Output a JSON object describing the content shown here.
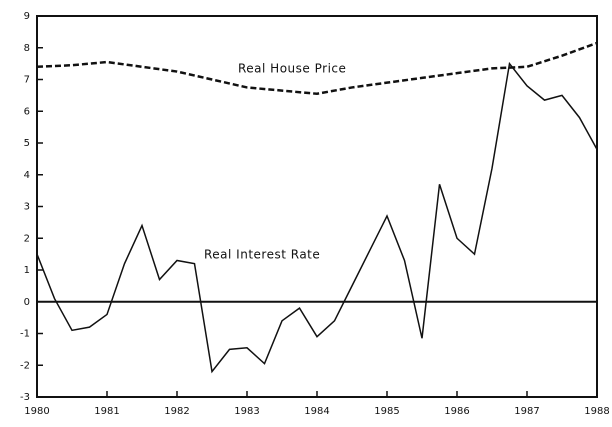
{
  "chart_data": {
    "type": "line",
    "annotations": [
      "Real House Price",
      "Real Interest Rate"
    ],
    "series": [
      {
        "name": "Real House Price",
        "color": "#111111",
        "dash": true,
        "x": [
          1980,
          1980.5,
          1981,
          1981.5,
          1982,
          1982.5,
          1983,
          1983.5,
          1984,
          1984.5,
          1985,
          1985.5,
          1986,
          1986.5,
          1987,
          1987.5,
          1988
        ],
        "values": [
          7.4,
          7.45,
          7.55,
          7.4,
          7.25,
          7.0,
          6.75,
          6.65,
          6.55,
          6.75,
          6.9,
          7.05,
          7.2,
          7.35,
          7.4,
          7.75,
          8.15
        ]
      },
      {
        "name": "Real Interest Rate",
        "color": "#111111",
        "dash": false,
        "x": [
          1980,
          1980.25,
          1980.5,
          1980.75,
          1981,
          1981.25,
          1981.5,
          1981.75,
          1982,
          1982.25,
          1982.5,
          1982.75,
          1983,
          1983.25,
          1983.5,
          1983.75,
          1984,
          1984.25,
          1984.5,
          1984.75,
          1985,
          1985.25,
          1985.5,
          1985.75,
          1986,
          1986.25,
          1986.5,
          1986.75,
          1987,
          1987.25,
          1987.5,
          1987.75,
          1988
        ],
        "values": [
          1.5,
          0.1,
          -0.9,
          -0.8,
          -0.4,
          1.2,
          2.4,
          0.7,
          1.3,
          1.2,
          -2.2,
          -1.5,
          -1.45,
          -1.95,
          -0.6,
          -0.2,
          -1.1,
          -0.6,
          0.5,
          1.6,
          2.7,
          1.3,
          -1.15,
          3.7,
          2.0,
          1.5,
          4.2,
          7.5,
          6.8,
          6.35,
          6.5,
          5.8,
          4.8
        ]
      }
    ],
    "reference_line": 0,
    "xlim": [
      1980,
      1988
    ],
    "xticks": [
      1980,
      1981,
      1982,
      1983,
      1984,
      1985,
      1986,
      1987,
      1988
    ],
    "ylim": [
      -3,
      9
    ],
    "yticks": [
      -3,
      -2,
      -1,
      0,
      1,
      2,
      3,
      4,
      5,
      6,
      7,
      8,
      9
    ],
    "grid": false
  }
}
